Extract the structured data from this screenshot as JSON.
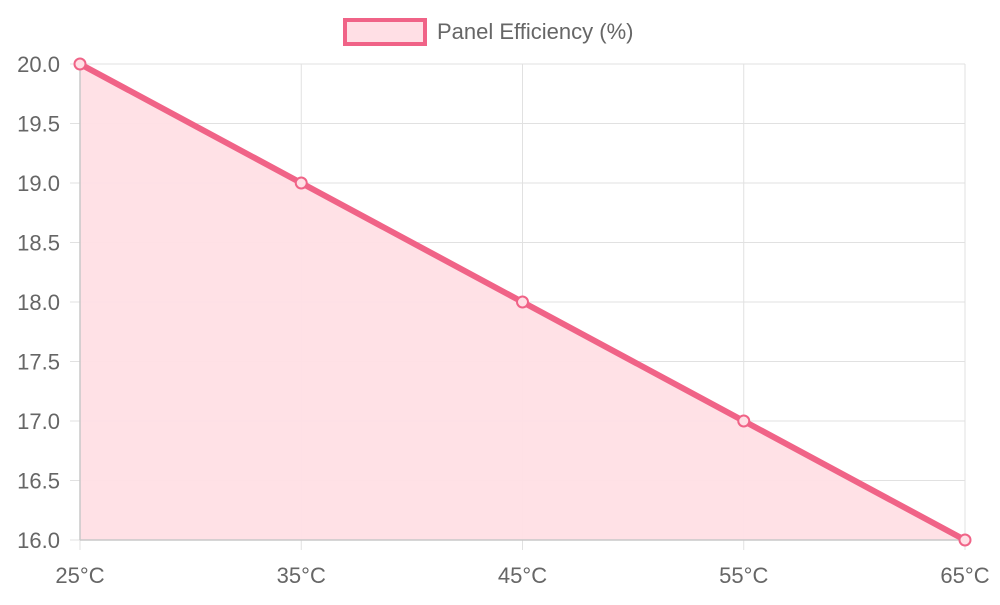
{
  "chart_data": {
    "type": "area",
    "categories": [
      "25°C",
      "35°C",
      "45°C",
      "55°C",
      "65°C"
    ],
    "series": [
      {
        "name": "Panel Efficiency (%)",
        "values": [
          20.0,
          19.0,
          18.0,
          17.0,
          16.0
        ]
      }
    ],
    "yticks": [
      "16.0",
      "16.5",
      "17.0",
      "17.5",
      "18.0",
      "18.5",
      "19.0",
      "19.5",
      "20.0"
    ],
    "ylim": [
      16.0,
      20.0
    ],
    "legend": "top-center",
    "grid": true
  },
  "colors": {
    "line": "#f06387",
    "fill": "#ffdfe5",
    "grid": "#e1e1e1",
    "axis": "#c8c8c8",
    "text": "#666666"
  }
}
